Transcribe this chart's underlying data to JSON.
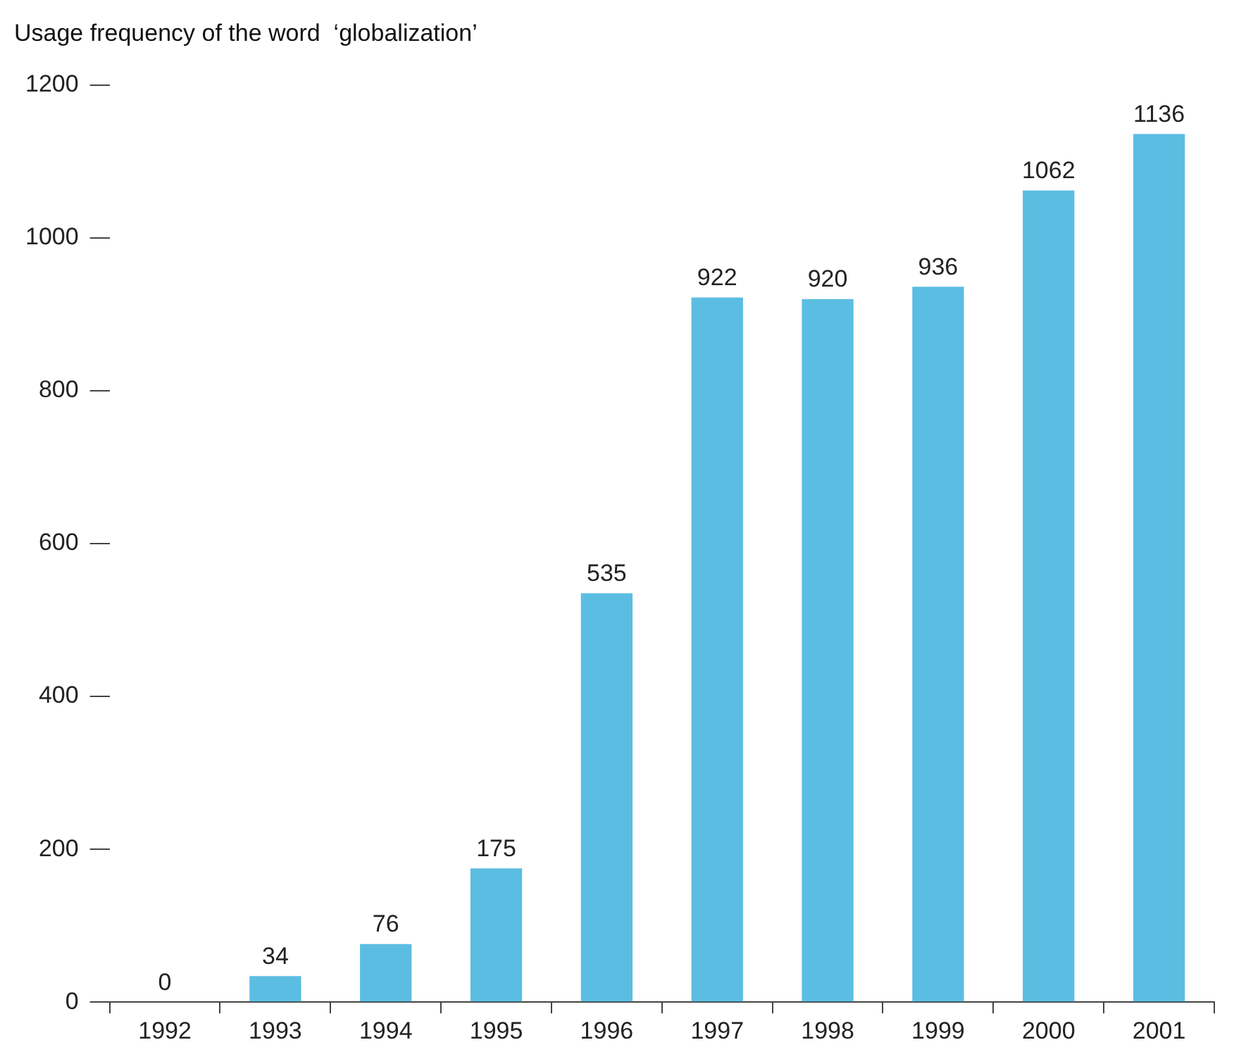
{
  "chart_data": {
    "type": "bar",
    "title": "Usage frequency of the word  ‘globalization’",
    "categories": [
      "1992",
      "1993",
      "1994",
      "1995",
      "1996",
      "1997",
      "1998",
      "1999",
      "2000",
      "2001"
    ],
    "values": [
      0,
      34,
      76,
      175,
      535,
      922,
      920,
      936,
      1062,
      1136
    ],
    "color": "#5cbde2",
    "ylim": [
      0,
      1200
    ],
    "yticks": [
      0,
      200,
      400,
      600,
      800,
      1000,
      1200
    ],
    "data_labels": true
  }
}
